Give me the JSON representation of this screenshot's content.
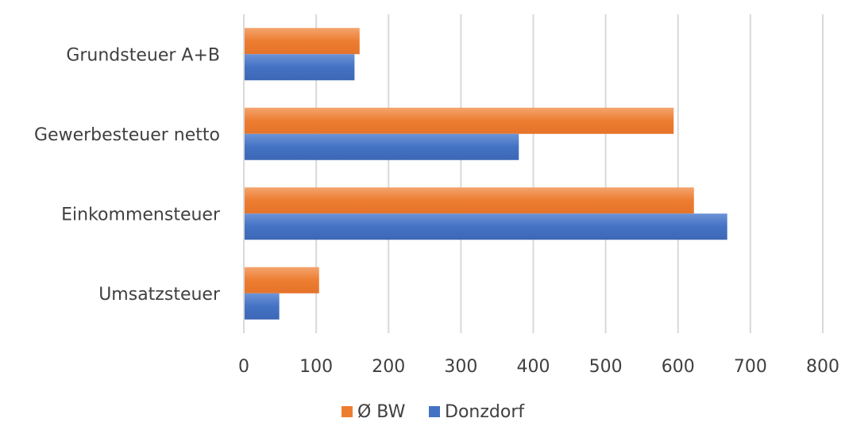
{
  "chart_data": {
    "type": "bar",
    "orientation": "horizontal",
    "categories": [
      "Grundsteuer A+B",
      "Gewerbesteuer netto",
      "Einkommensteuer",
      "Umsatzsteuer"
    ],
    "series": [
      {
        "name": "Ø BW",
        "color": "#ED7D31",
        "values": [
          160,
          594,
          622,
          104
        ]
      },
      {
        "name": "Donzdorf",
        "color": "#4472C4",
        "values": [
          153,
          380,
          668,
          49
        ]
      }
    ],
    "xlim": [
      0,
      800
    ],
    "x_ticks": [
      "0",
      "100",
      "200",
      "300",
      "400",
      "500",
      "600",
      "700",
      "800"
    ],
    "grid": "vertical",
    "legend_position": "bottom"
  }
}
